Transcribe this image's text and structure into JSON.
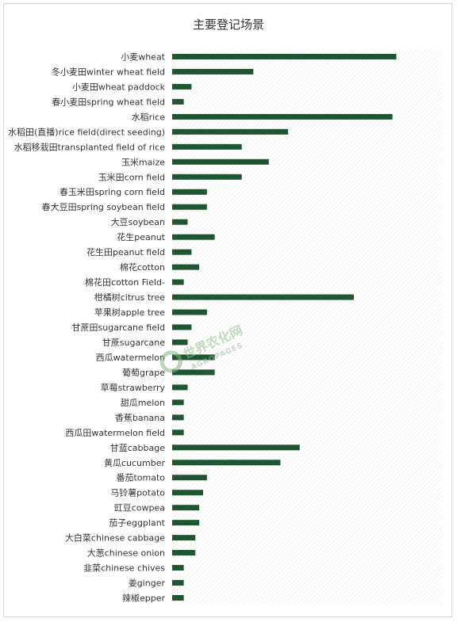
{
  "chart_data": {
    "type": "bar",
    "orientation": "horizontal",
    "title": "主要登记场景",
    "bar_color": "#1e5631",
    "grid": false,
    "categories": [
      "小麦wheat",
      "冬小麦田winter wheat field",
      "小麦田wheat paddock",
      "春小麦田spring wheat field",
      "水稻rice",
      "水稻田(直播)rice field(direct seeding)",
      "水稻移栽田transplanted field of rice",
      "玉米maize",
      "玉米田corn field",
      "春玉米田spring corn field",
      "春大豆田spring soybean field",
      "大豆soybean",
      "花生peanut",
      "花生田peanut field",
      "棉花cotton",
      "棉花田cotton Field-",
      "柑橘树citrus tree",
      "苹果树apple tree",
      "甘蔗田sugarcane field",
      "甘蔗sugarcane",
      "西瓜watermelon",
      "葡萄grape",
      "草莓strawberry",
      "甜瓜melon",
      "香蕉banana",
      "西瓜田watermelon field",
      "甘蓝cabbage",
      "黄瓜cucumber",
      "番茄tomato",
      "马铃薯potato",
      "豇豆cowpea",
      "茄子eggplant",
      "大白菜chinese cabbage",
      "大葱chinese onion",
      "韭菜chinese chives",
      "姜ginger",
      "辣椒epper"
    ],
    "values": [
      58,
      21,
      5,
      3,
      57,
      30,
      18,
      25,
      18,
      9,
      9,
      4,
      11,
      5,
      7,
      3,
      47,
      9,
      5,
      4,
      11,
      11,
      4,
      3,
      3,
      3,
      33,
      28,
      9,
      8,
      7,
      7,
      6,
      6,
      3,
      3,
      3
    ],
    "xlim": [
      0,
      70
    ]
  },
  "watermark": {
    "text": "世界农化网",
    "subtext": "AGROPAGES"
  }
}
